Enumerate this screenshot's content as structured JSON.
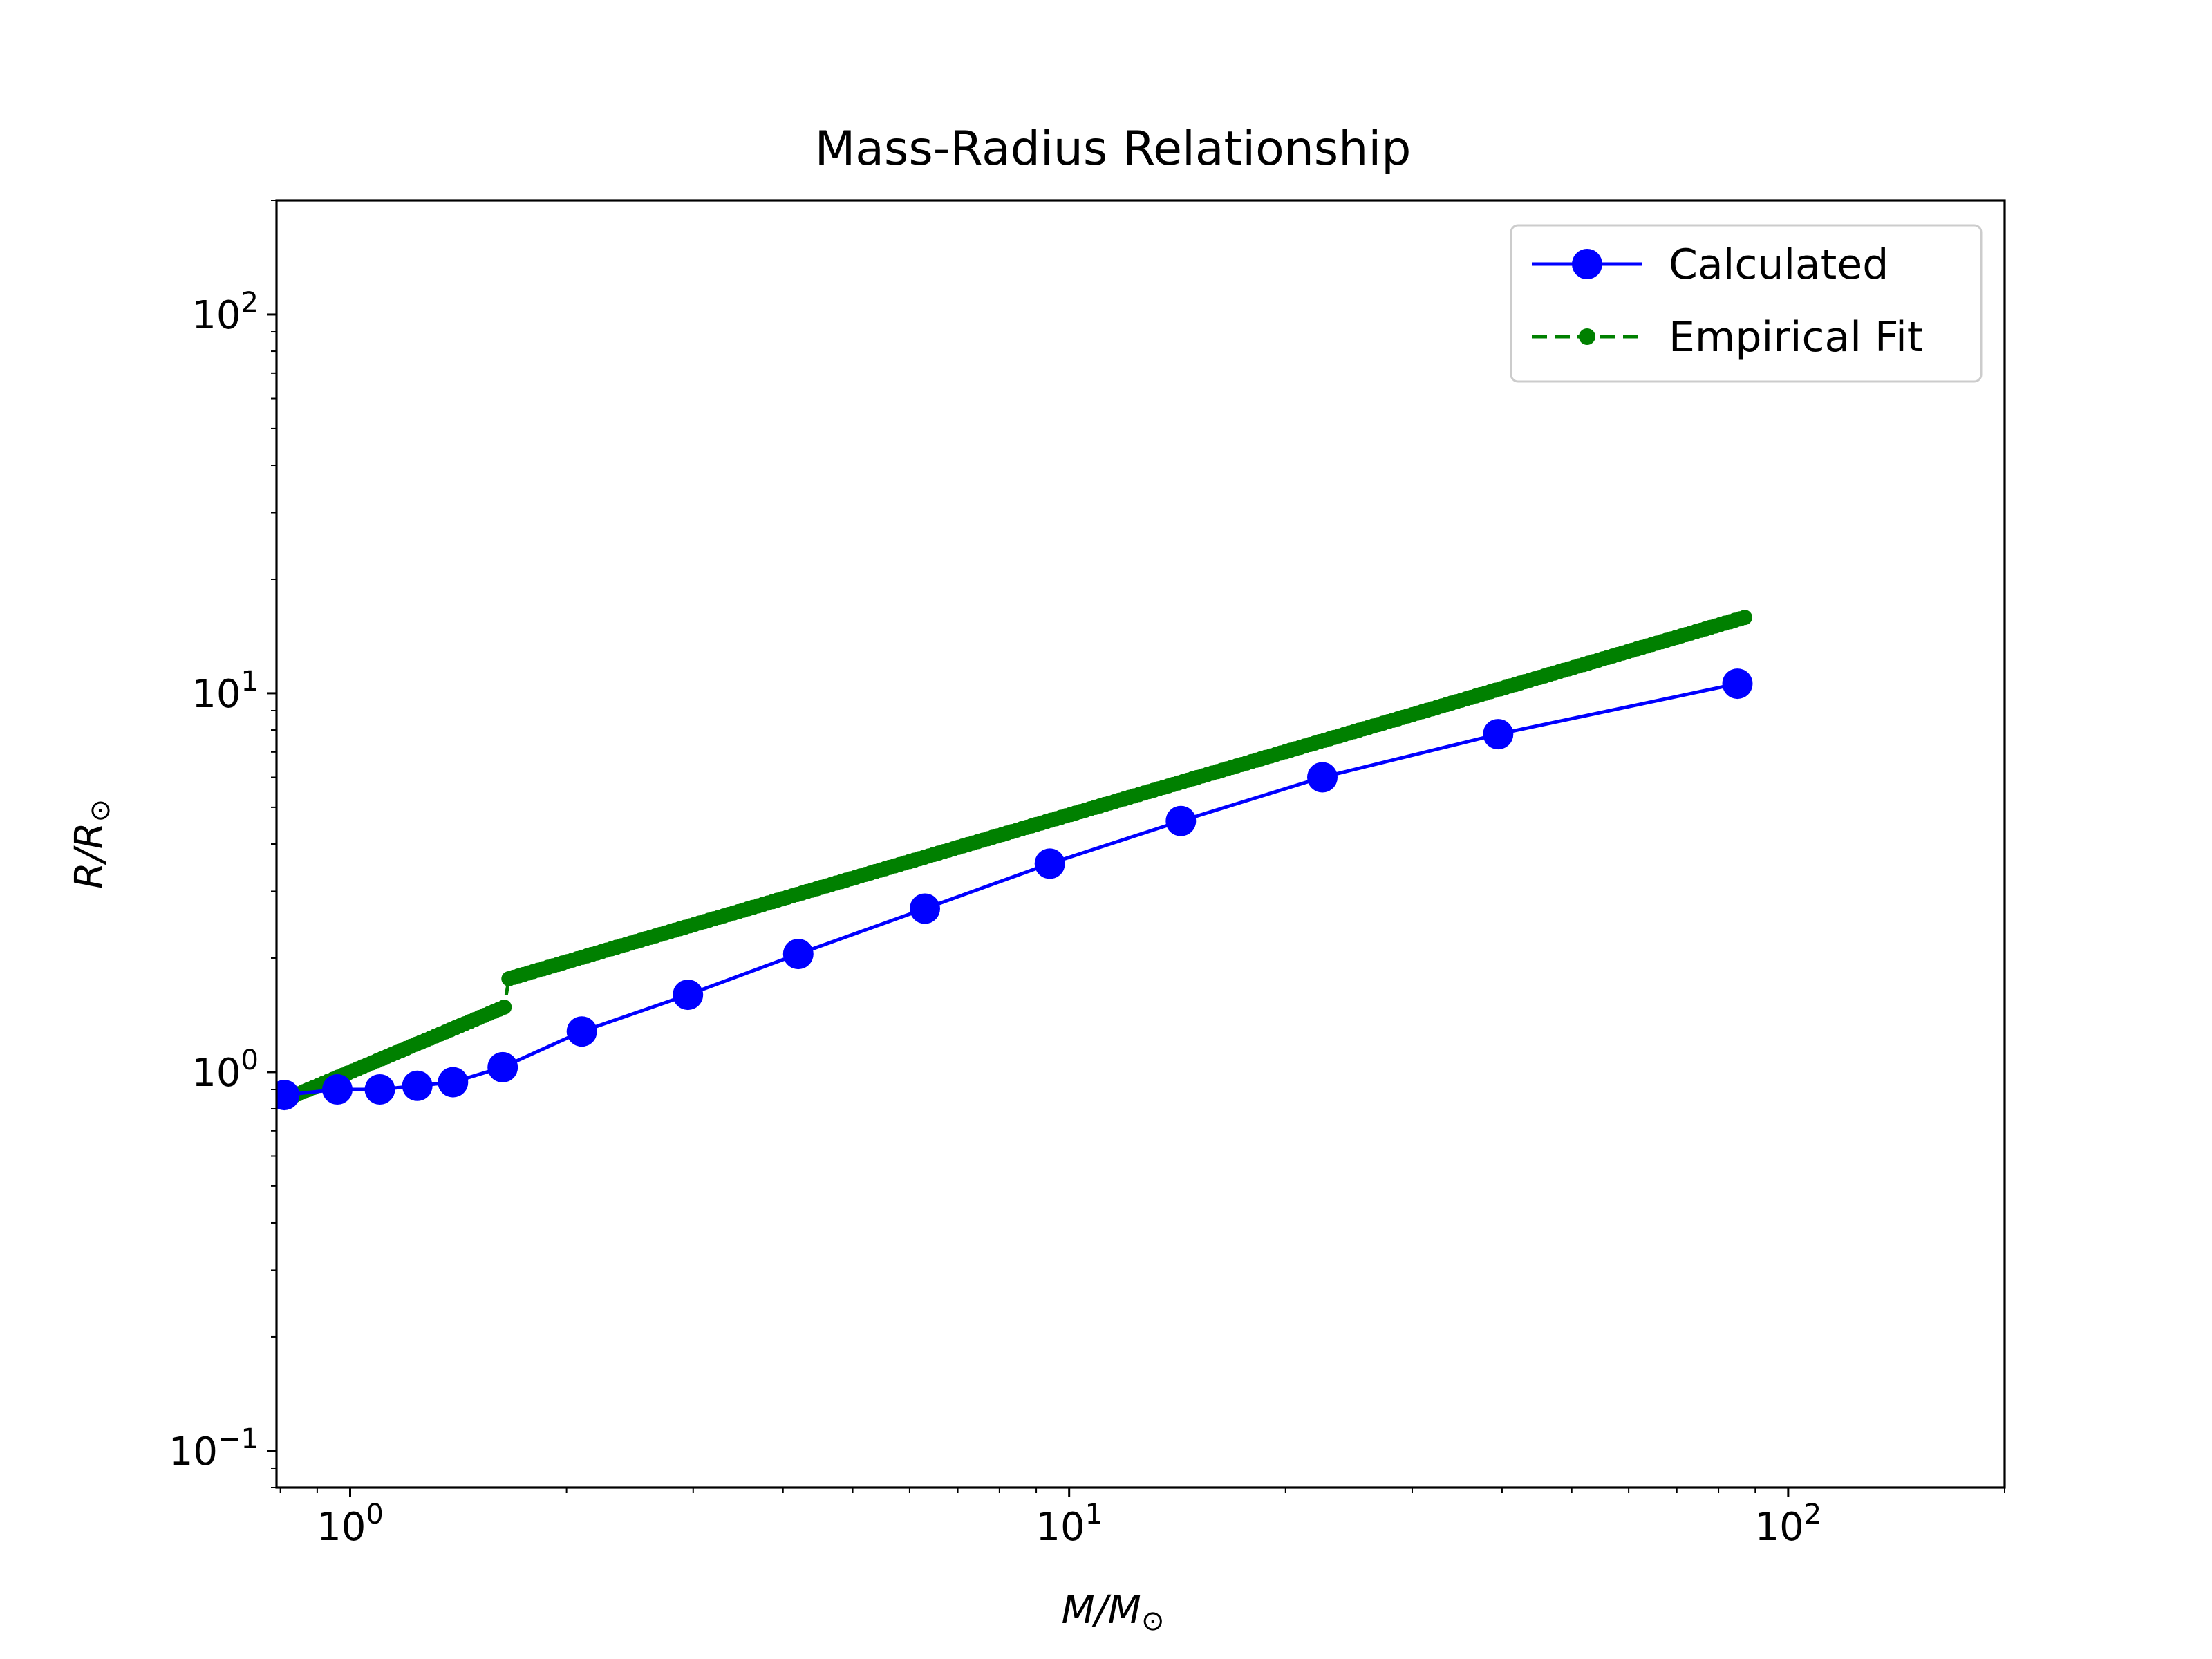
{
  "chart_data": {
    "type": "line",
    "title": "Mass-Radius Relationship",
    "xlabel": "M/M",
    "xlabel_subscript": "⊙",
    "ylabel": "R/R",
    "ylabel_subscript": "⊙",
    "xscale": "log",
    "yscale": "log",
    "xlim": [
      0.79,
      200
    ],
    "ylim": [
      0.08,
      200
    ],
    "xticks": [
      {
        "base": "10",
        "exp": "0",
        "value": 1
      },
      {
        "base": "10",
        "exp": "1",
        "value": 10
      },
      {
        "base": "10",
        "exp": "2",
        "value": 100
      }
    ],
    "yticks": [
      {
        "base": "10",
        "exp": "−1",
        "value": 0.1
      },
      {
        "base": "10",
        "exp": "0",
        "value": 1
      },
      {
        "base": "10",
        "exp": "1",
        "value": 10
      },
      {
        "base": "10",
        "exp": "2",
        "value": 100
      }
    ],
    "legend_position": "top-right",
    "series": [
      {
        "name": "Calculated",
        "color": "#0000ff",
        "style": "solid-line-large-circles",
        "x": [
          0.81,
          0.96,
          1.1,
          1.24,
          1.39,
          1.63,
          2.1,
          2.95,
          4.2,
          6.3,
          9.4,
          14.3,
          22.5,
          39.5,
          85
        ],
        "y": [
          0.87,
          0.9,
          0.9,
          0.92,
          0.94,
          1.03,
          1.28,
          1.6,
          2.05,
          2.7,
          3.55,
          4.6,
          6.0,
          7.8,
          10.6
        ]
      },
      {
        "name": "Empirical Fit",
        "color": "#008000",
        "style": "dashed-line-small-dots",
        "x_start": 0.81,
        "x_end": 87,
        "n_points": 300,
        "model": "R = M^0.8 for M < 1.66; R = 1.33 * M^0.555 for M >= 1.66"
      }
    ]
  }
}
